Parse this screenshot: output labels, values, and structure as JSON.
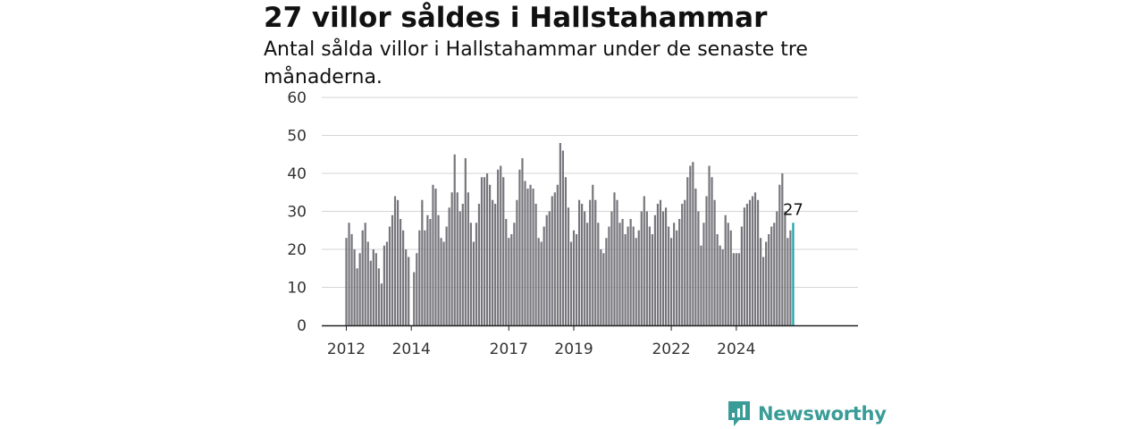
{
  "title": "27 villor såldes i Hallstahammar",
  "subtitle": "Antal sålda villor i Hallstahammar under de senaste tre månaderna.",
  "logo": {
    "text": "Newsworthy",
    "icon": "newsworthy-logo-icon",
    "color": "#3a9c97"
  },
  "colors": {
    "bar": "#76767c",
    "highlight": "#16a3a8",
    "grid": "#d5d5d5",
    "axis": "#222222"
  },
  "chart_data": {
    "type": "bar",
    "title": "",
    "xlabel": "",
    "ylabel": "",
    "ylim": [
      0,
      60
    ],
    "yticks": [
      "0",
      "10",
      "20",
      "30",
      "40",
      "50",
      "60"
    ],
    "xticks": [
      "2012",
      "2014",
      "2017",
      "2019",
      "2022",
      "2024"
    ],
    "grid": true,
    "highlight_label": "27",
    "series": [
      {
        "values": [
          23,
          27,
          24,
          20,
          15,
          19,
          25,
          27,
          22,
          17,
          20,
          19,
          15,
          11,
          21,
          22,
          26,
          29,
          34,
          33,
          28,
          25,
          20,
          18,
          0,
          14,
          19,
          25,
          33,
          25,
          29,
          28,
          37,
          36,
          29,
          23,
          22,
          26,
          31,
          35,
          45,
          35,
          30,
          32,
          44,
          35,
          27,
          22,
          27,
          32,
          39,
          39,
          40,
          37,
          33,
          32,
          41,
          42,
          39,
          28,
          23,
          24,
          27,
          33,
          41,
          44,
          38,
          36,
          37,
          36,
          32,
          23,
          22,
          26,
          29,
          30,
          34,
          35,
          37,
          48,
          46,
          39,
          31,
          22,
          25,
          24,
          33,
          32,
          30,
          27,
          33,
          37,
          33,
          27,
          20,
          19,
          23,
          26,
          30,
          35,
          33,
          27,
          28,
          24,
          26,
          28,
          26,
          23,
          25,
          30,
          34,
          30,
          26,
          24,
          29,
          32,
          33,
          30,
          31,
          26,
          23,
          27,
          25,
          28,
          32,
          33,
          39,
          42,
          43,
          36,
          30,
          21,
          27,
          34,
          42,
          39,
          33,
          24,
          21,
          20,
          29,
          27,
          25,
          19,
          19,
          19,
          26,
          31,
          32,
          33,
          34,
          35,
          33,
          23,
          18,
          22,
          24,
          26,
          27,
          30,
          37,
          40,
          30,
          23,
          25,
          27
        ],
        "highlight_last": true
      }
    ]
  }
}
